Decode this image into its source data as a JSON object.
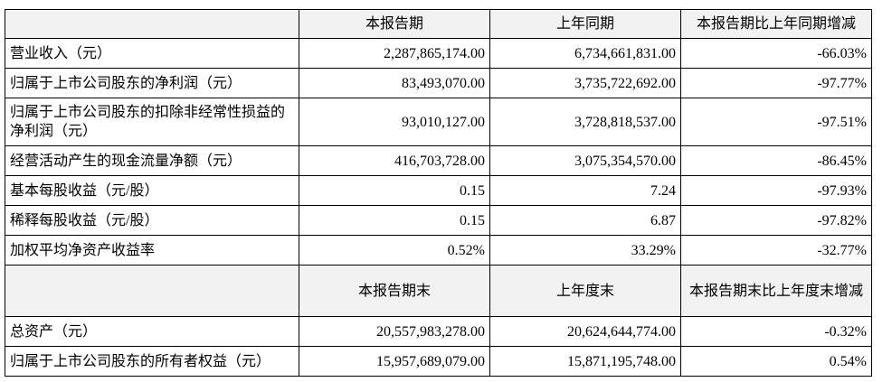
{
  "table": {
    "header1": [
      "",
      "本报告期",
      "上年同期",
      "本报告期比上年同期增减"
    ],
    "rows1": [
      [
        "营业收入（元）",
        "2,287,865,174.00",
        "6,734,661,831.00",
        "-66.03%"
      ],
      [
        "归属于上市公司股东的净利润（元）",
        "83,493,070.00",
        "3,735,722,692.00",
        "-97.77%"
      ],
      [
        "归属于上市公司股东的扣除非经常性损益的净利润（元）",
        "93,010,127.00",
        "3,728,818,537.00",
        "-97.51%"
      ],
      [
        "经营活动产生的现金流量净额（元）",
        "416,703,728.00",
        "3,075,354,570.00",
        "-86.45%"
      ],
      [
        "基本每股收益（元/股）",
        "0.15",
        "7.24",
        "-97.93%"
      ],
      [
        "稀释每股收益（元/股）",
        "0.15",
        "6.87",
        "-97.82%"
      ],
      [
        "加权平均净资产收益率",
        "0.52%",
        "33.29%",
        "-32.77%"
      ]
    ],
    "header2": [
      "",
      "本报告期末",
      "上年度末",
      "本报告期末比上年度末增减"
    ],
    "rows2": [
      [
        "总资产（元）",
        "20,557,983,278.00",
        "20,624,644,774.00",
        "-0.32%"
      ],
      [
        "归属于上市公司股东的所有者权益（元）",
        "15,957,689,079.00",
        "15,871,195,748.00",
        "0.54%"
      ]
    ]
  }
}
